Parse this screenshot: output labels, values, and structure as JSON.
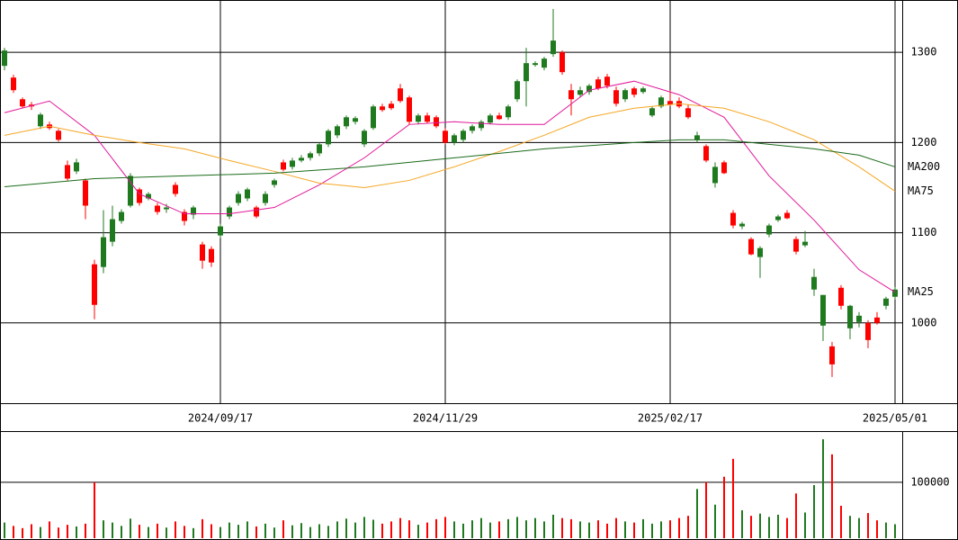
{
  "chart_data": {
    "type": "candlestick",
    "categories": [
      null,
      null,
      null,
      null,
      null,
      null,
      null,
      null,
      null,
      null,
      null,
      null,
      null,
      null,
      null,
      null,
      null,
      null,
      null,
      null,
      null,
      null,
      null,
      null,
      "2024/09/17",
      null,
      null,
      null,
      null,
      null,
      null,
      null,
      null,
      null,
      null,
      null,
      null,
      null,
      null,
      null,
      null,
      null,
      null,
      null,
      null,
      null,
      null,
      null,
      null,
      "2024/11/29",
      null,
      null,
      null,
      null,
      null,
      null,
      null,
      null,
      null,
      null,
      null,
      null,
      null,
      null,
      null,
      null,
      null,
      null,
      null,
      null,
      null,
      null,
      null,
      null,
      "2025/02/17",
      null,
      null,
      null,
      null,
      null,
      null,
      null,
      null,
      null,
      null,
      null,
      null,
      null,
      null,
      null,
      null,
      null,
      null,
      null,
      null,
      null,
      null,
      null,
      null,
      "2025/05/01"
    ],
    "open": [
      1285,
      1272,
      1248,
      1242,
      1218,
      1220,
      1213,
      1175,
      1168,
      1158,
      1065,
      1062,
      1090,
      1113,
      1130,
      1148,
      1138,
      1130,
      1126,
      1153,
      1123,
      1120,
      1087,
      1082,
      1097,
      1118,
      1133,
      1138,
      1128,
      1133,
      1153,
      1178,
      1173,
      1180,
      1183,
      1188,
      1198,
      1208,
      1218,
      1223,
      1198,
      1216,
      1240,
      1243,
      1260,
      1250,
      1223,
      1230,
      1228,
      1213,
      1200,
      1203,
      1213,
      1216,
      1222,
      1230,
      1228,
      1248,
      1268,
      1286,
      1283,
      1298,
      1300,
      1258,
      1253,
      1256,
      1270,
      1273,
      1258,
      1248,
      1260,
      1256,
      1230,
      1240,
      1246,
      1246,
      1238,
      1203,
      1196,
      1155,
      1178,
      1122,
      1107,
      1093,
      1073,
      1098,
      1114,
      1122,
      1093,
      1086,
      1037,
      997,
      974,
      1039,
      994,
      1001,
      1000,
      1006,
      1019,
      1029
    ],
    "high": [
      1305,
      1275,
      1250,
      1245,
      1233,
      1223,
      1215,
      1180,
      1182,
      1160,
      1070,
      1125,
      1130,
      1126,
      1166,
      1150,
      1145,
      1133,
      1132,
      1156,
      1126,
      1130,
      1090,
      1085,
      1110,
      1130,
      1146,
      1150,
      1130,
      1146,
      1160,
      1181,
      1183,
      1186,
      1190,
      1200,
      1215,
      1220,
      1230,
      1229,
      1215,
      1242,
      1243,
      1246,
      1265,
      1252,
      1232,
      1233,
      1230,
      1216,
      1210,
      1215,
      1220,
      1225,
      1232,
      1233,
      1242,
      1270,
      1305,
      1290,
      1295,
      1348,
      1302,
      1265,
      1262,
      1265,
      1273,
      1276,
      1262,
      1260,
      1262,
      1262,
      1240,
      1252,
      1258,
      1250,
      1242,
      1212,
      1198,
      1178,
      1180,
      1125,
      1112,
      1095,
      1085,
      1110,
      1120,
      1125,
      1096,
      1102,
      1060,
      1031,
      979,
      1042,
      1020,
      1012,
      1003,
      1012,
      1029,
      1040
    ],
    "low": [
      1280,
      1255,
      1238,
      1236,
      1215,
      1214,
      1201,
      1158,
      1165,
      1115,
      1004,
      1055,
      1085,
      1110,
      1128,
      1130,
      1136,
      1120,
      1122,
      1140,
      1108,
      1115,
      1060,
      1062,
      1094,
      1115,
      1130,
      1135,
      1116,
      1130,
      1150,
      1168,
      1170,
      1178,
      1180,
      1185,
      1195,
      1205,
      1215,
      1220,
      1195,
      1214,
      1234,
      1236,
      1244,
      1220,
      1220,
      1221,
      1216,
      1198,
      1197,
      1200,
      1210,
      1213,
      1220,
      1225,
      1225,
      1245,
      1240,
      1284,
      1280,
      1295,
      1275,
      1230,
      1250,
      1253,
      1258,
      1260,
      1240,
      1245,
      1250,
      1254,
      1228,
      1238,
      1240,
      1238,
      1226,
      1200,
      1178,
      1150,
      1165,
      1105,
      1104,
      1075,
      1050,
      1095,
      1112,
      1115,
      1076,
      1084,
      1030,
      980,
      940,
      1015,
      982,
      995,
      972,
      998,
      1015,
      1026
    ],
    "close": [
      1302,
      1258,
      1240,
      1240,
      1231,
      1216,
      1203,
      1160,
      1178,
      1130,
      1020,
      1095,
      1115,
      1123,
      1163,
      1133,
      1143,
      1123,
      1128,
      1143,
      1113,
      1128,
      1069,
      1067,
      1107,
      1128,
      1143,
      1148,
      1118,
      1143,
      1158,
      1170,
      1180,
      1183,
      1188,
      1198,
      1213,
      1218,
      1228,
      1227,
      1213,
      1240,
      1236,
      1238,
      1246,
      1223,
      1230,
      1223,
      1218,
      1200,
      1208,
      1213,
      1218,
      1223,
      1230,
      1226,
      1240,
      1268,
      1288,
      1288,
      1293,
      1313,
      1278,
      1248,
      1258,
      1263,
      1260,
      1263,
      1243,
      1258,
      1253,
      1260,
      1238,
      1250,
      1242,
      1240,
      1228,
      1208,
      1180,
      1173,
      1166,
      1108,
      1110,
      1076,
      1083,
      1108,
      1118,
      1116,
      1079,
      1090,
      1051,
      1031,
      954,
      1019,
      1019,
      1008,
      981,
      1000,
      1027,
      1037
    ],
    "up_color": "#1f7a1f",
    "down_color": "#ff0000",
    "ylim": [
      911,
      1358
    ],
    "yticks": [
      1000,
      1100,
      1200,
      1300
    ],
    "grid": true,
    "lines": [
      {
        "name": "MA25",
        "color": "#e0199a",
        "x": [
          0,
          5,
          10,
          15,
          20,
          25,
          30,
          35,
          40,
          45,
          50,
          55,
          60,
          65,
          70,
          75,
          80,
          85,
          90,
          95,
          99
        ],
        "values": [
          1233,
          1246,
          1208,
          1143,
          1121,
          1121,
          1128,
          1153,
          1183,
          1220,
          1223,
          1220,
          1220,
          1258,
          1268,
          1253,
          1228,
          1163,
          1114,
          1059,
          1034
        ]
      },
      {
        "name": "MA75",
        "color": "#f5a623",
        "x": [
          0,
          5,
          10,
          15,
          20,
          25,
          30,
          35,
          40,
          45,
          50,
          55,
          60,
          65,
          70,
          75,
          80,
          85,
          90,
          95,
          99
        ],
        "values": [
          1208,
          1218,
          1208,
          1200,
          1193,
          1180,
          1168,
          1155,
          1150,
          1158,
          1173,
          1190,
          1208,
          1228,
          1238,
          1243,
          1238,
          1223,
          1203,
          1173,
          1146
        ]
      },
      {
        "name": "MA200",
        "color": "#1a6b1a",
        "x": [
          0,
          10,
          20,
          30,
          40,
          50,
          60,
          70,
          75,
          80,
          90,
          95,
          99
        ],
        "values": [
          1151,
          1160,
          1163,
          1166,
          1173,
          1183,
          1193,
          1200,
          1203,
          1203,
          1193,
          1186,
          1173
        ]
      }
    ],
    "volume": {
      "ylim": [
        0,
        190000
      ],
      "yticks": [
        100000
      ],
      "values": [
        28000,
        22000,
        18000,
        25000,
        20000,
        30000,
        19000,
        24000,
        21000,
        26000,
        100000,
        32000,
        28000,
        22000,
        35000,
        24000,
        20000,
        26000,
        19000,
        30000,
        22000,
        18000,
        34000,
        25000,
        20000,
        28000,
        24000,
        30000,
        21000,
        26000,
        19000,
        32000,
        23000,
        27000,
        20000,
        25000,
        22000,
        30000,
        35000,
        28000,
        38000,
        33000,
        26000,
        30000,
        36000,
        32000,
        24000,
        28000,
        34000,
        38000,
        30000,
        26000,
        32000,
        36000,
        28000,
        30000,
        34000,
        38000,
        32000,
        36000,
        30000,
        42000,
        36000,
        34000,
        30000,
        28000,
        32000,
        26000,
        36000,
        30000,
        28000,
        34000,
        26000,
        30000,
        32000,
        36000,
        40000,
        88000,
        100000,
        60000,
        110000,
        142000,
        50000,
        40000,
        44000,
        38000,
        42000,
        36000,
        80000,
        46000,
        95000,
        177000,
        150000,
        58000,
        40000,
        36000,
        45000,
        32000,
        28000,
        25000
      ]
    }
  }
}
